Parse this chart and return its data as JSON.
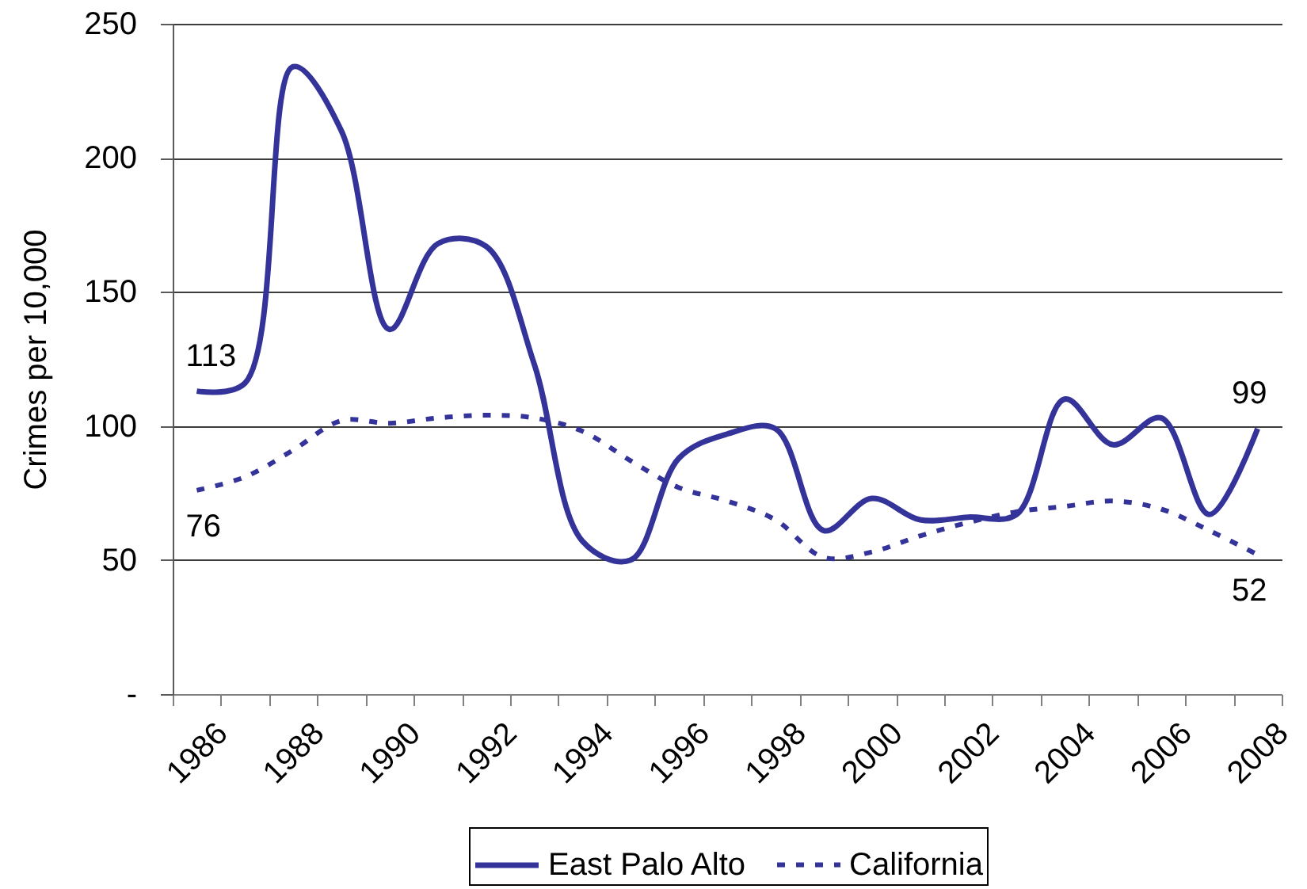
{
  "chart_data": {
    "type": "line",
    "ylabel": "Crimes per 10,000",
    "categories": [
      "1986",
      null,
      "1988",
      null,
      "1990",
      null,
      "1992",
      null,
      "1994",
      null,
      "1996",
      null,
      "1998",
      null,
      "2000",
      null,
      "2002",
      null,
      "2004",
      null,
      "2006",
      null,
      "2008"
    ],
    "series": [
      {
        "name": "East Palo Alto",
        "color": "#333399",
        "line_style": "solid",
        "values": [
          113,
          116,
          234,
          210,
          136,
          168,
          167,
          123,
          57,
          50,
          88,
          97,
          99,
          61,
          73,
          65,
          66,
          67,
          110,
          93,
          103,
          67,
          99
        ],
        "value_labels": [
          "113",
          null,
          null,
          null,
          null,
          null,
          null,
          null,
          null,
          null,
          null,
          null,
          null,
          null,
          null,
          null,
          null,
          null,
          null,
          null,
          null,
          null,
          "99"
        ]
      },
      {
        "name": "California",
        "color": "#333399",
        "line_style": "dashed",
        "values": [
          76,
          81,
          91,
          102,
          101,
          103,
          104,
          103,
          98,
          87,
          77,
          72,
          65,
          51,
          53,
          59,
          64,
          68,
          70,
          72,
          69,
          61,
          52
        ],
        "value_labels": [
          "76",
          null,
          null,
          null,
          null,
          null,
          null,
          null,
          null,
          null,
          null,
          null,
          null,
          null,
          null,
          null,
          null,
          null,
          null,
          null,
          null,
          null,
          "52"
        ]
      }
    ],
    "ylim": [
      0,
      250
    ],
    "yticks": [
      {
        "value": 0,
        "label": "-"
      },
      50,
      100,
      150,
      200,
      250
    ],
    "grid": "y",
    "legend": "bottom"
  }
}
